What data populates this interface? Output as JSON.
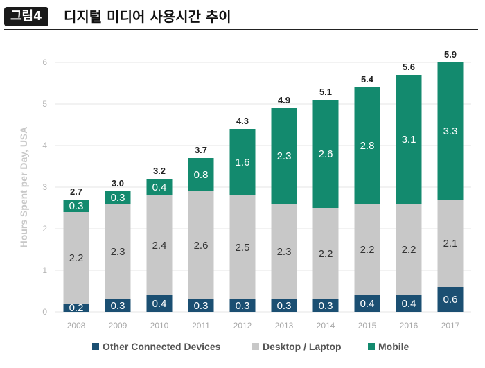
{
  "header": {
    "badge": "그림4",
    "title": "디지털 미디어 사용시간 추이"
  },
  "chart_data": {
    "type": "bar",
    "stacked": true,
    "title": "디지털 미디어 사용시간 추이",
    "xlabel": "",
    "ylabel": "Hours Spent per Day, USA",
    "ylim": [
      0,
      6
    ],
    "yticks": [
      0,
      1,
      2,
      3,
      4,
      5,
      6
    ],
    "categories": [
      "2008",
      "2009",
      "2010",
      "2011",
      "2012",
      "2013",
      "2014",
      "2015",
      "2016",
      "2017"
    ],
    "series": [
      {
        "name": "Other Connected Devices",
        "color": "#1b4f72",
        "values": [
          0.2,
          0.3,
          0.4,
          0.3,
          0.3,
          0.3,
          0.3,
          0.4,
          0.4,
          0.6
        ]
      },
      {
        "name": "Desktop / Laptop",
        "color": "#c8c8c8",
        "values": [
          2.2,
          2.3,
          2.4,
          2.6,
          2.5,
          2.3,
          2.2,
          2.2,
          2.2,
          2.1
        ]
      },
      {
        "name": "Mobile",
        "color": "#138a6e",
        "values": [
          0.3,
          0.3,
          0.4,
          0.8,
          1.6,
          2.3,
          2.6,
          2.8,
          3.1,
          3.3
        ]
      }
    ],
    "totals": [
      2.7,
      3.0,
      3.2,
      3.7,
      4.3,
      4.9,
      5.1,
      5.4,
      5.6,
      5.9
    ],
    "grid": true,
    "legend": "bottom-center"
  }
}
